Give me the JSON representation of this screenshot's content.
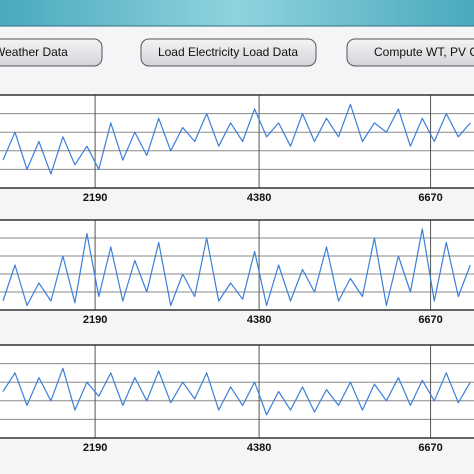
{
  "toolbar": {
    "buttons": [
      "Weather Data",
      "Load Electricity Load Data",
      "Compute WT, PV C"
    ]
  },
  "chart_data": [
    {
      "type": "line",
      "color": "#3b7fdb",
      "x": [
        960,
        1120,
        1280,
        1440,
        1600,
        1760,
        1920,
        2080,
        2240,
        2400,
        2560,
        2720,
        2880,
        3040,
        3200,
        3360,
        3520,
        3680,
        3840,
        4000,
        4160,
        4320,
        4480,
        4640,
        4800,
        4960,
        5120,
        5280,
        5440,
        5600,
        5760,
        5920,
        6080,
        6240,
        6400,
        6560,
        6720,
        6880,
        7040,
        7200
      ],
      "values": [
        0.3,
        0.6,
        0.2,
        0.5,
        0.15,
        0.55,
        0.25,
        0.45,
        0.2,
        0.7,
        0.3,
        0.6,
        0.35,
        0.75,
        0.4,
        0.65,
        0.5,
        0.8,
        0.45,
        0.7,
        0.5,
        0.85,
        0.55,
        0.7,
        0.45,
        0.8,
        0.5,
        0.75,
        0.55,
        0.9,
        0.5,
        0.7,
        0.6,
        0.85,
        0.45,
        0.75,
        0.5,
        0.8,
        0.55,
        0.7
      ],
      "xlim": [
        920,
        7250
      ],
      "xticks": [
        2190,
        4380,
        6670
      ],
      "ylim": [
        0,
        1
      ],
      "yticks": [
        0.2,
        0.4,
        0.6,
        0.8
      ],
      "grid": true
    },
    {
      "type": "line",
      "color": "#3b7fdb",
      "x": [
        960,
        1120,
        1280,
        1440,
        1600,
        1760,
        1920,
        2080,
        2240,
        2400,
        2560,
        2720,
        2880,
        3040,
        3200,
        3360,
        3520,
        3680,
        3840,
        4000,
        4160,
        4320,
        4480,
        4640,
        4800,
        4960,
        5120,
        5280,
        5440,
        5600,
        5760,
        5920,
        6080,
        6240,
        6400,
        6560,
        6720,
        6880,
        7040,
        7200
      ],
      "values": [
        0.1,
        0.5,
        0.05,
        0.3,
        0.1,
        0.6,
        0.08,
        0.85,
        0.15,
        0.7,
        0.1,
        0.55,
        0.2,
        0.75,
        0.05,
        0.4,
        0.15,
        0.8,
        0.1,
        0.3,
        0.12,
        0.65,
        0.05,
        0.5,
        0.1,
        0.45,
        0.2,
        0.7,
        0.1,
        0.35,
        0.15,
        0.8,
        0.05,
        0.6,
        0.2,
        0.9,
        0.1,
        0.75,
        0.15,
        0.5
      ],
      "xlim": [
        920,
        7250
      ],
      "xticks": [
        2190,
        4380,
        6670
      ],
      "ylim": [
        0,
        1
      ],
      "yticks": [
        0.2,
        0.4,
        0.6,
        0.8
      ],
      "grid": true
    },
    {
      "type": "line",
      "color": "#3b7fdb",
      "x": [
        960,
        1120,
        1280,
        1440,
        1600,
        1760,
        1920,
        2080,
        2240,
        2400,
        2560,
        2720,
        2880,
        3040,
        3200,
        3360,
        3520,
        3680,
        3840,
        4000,
        4160,
        4320,
        4480,
        4640,
        4800,
        4960,
        5120,
        5280,
        5440,
        5600,
        5760,
        5920,
        6080,
        6240,
        6400,
        6560,
        6720,
        6880,
        7040,
        7200
      ],
      "values": [
        0.5,
        0.7,
        0.35,
        0.65,
        0.4,
        0.75,
        0.3,
        0.6,
        0.45,
        0.7,
        0.35,
        0.65,
        0.4,
        0.72,
        0.38,
        0.6,
        0.42,
        0.7,
        0.3,
        0.55,
        0.35,
        0.6,
        0.25,
        0.5,
        0.3,
        0.55,
        0.28,
        0.52,
        0.35,
        0.6,
        0.3,
        0.58,
        0.4,
        0.65,
        0.35,
        0.62,
        0.4,
        0.7,
        0.38,
        0.6
      ],
      "xlim": [
        920,
        7250
      ],
      "xticks": [
        2190,
        4380,
        6670
      ],
      "ylim": [
        0,
        1
      ],
      "yticks": [
        0.2,
        0.4,
        0.6,
        0.8
      ],
      "grid": true
    }
  ]
}
